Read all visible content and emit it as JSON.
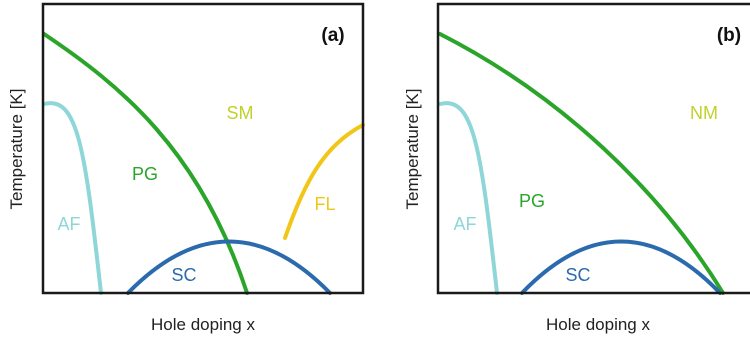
{
  "colors": {
    "frame": "#1a1a1a",
    "pseudogap": "#2aa52a",
    "antiferromagnet": "#8ed6d8",
    "superconductor": "#2a6aad",
    "fermi_liquid": "#f2c618",
    "metal_label": "#c2d12a"
  },
  "panels": [
    {
      "tag": "(a)",
      "xlabel": "Hole doping x",
      "ylabel": "Temperature [K]",
      "regions": {
        "metal": "SM",
        "pseudogap": "PG",
        "antiferromagnet": "AF",
        "superconductor": "SC",
        "fermi_liquid": "FL"
      }
    },
    {
      "tag": "(b)",
      "xlabel": "Hole doping x",
      "ylabel": "Temperature [K]",
      "regions": {
        "metal": "NM",
        "pseudogap": "PG",
        "antiferromagnet": "AF",
        "superconductor": "SC"
      }
    }
  ]
}
